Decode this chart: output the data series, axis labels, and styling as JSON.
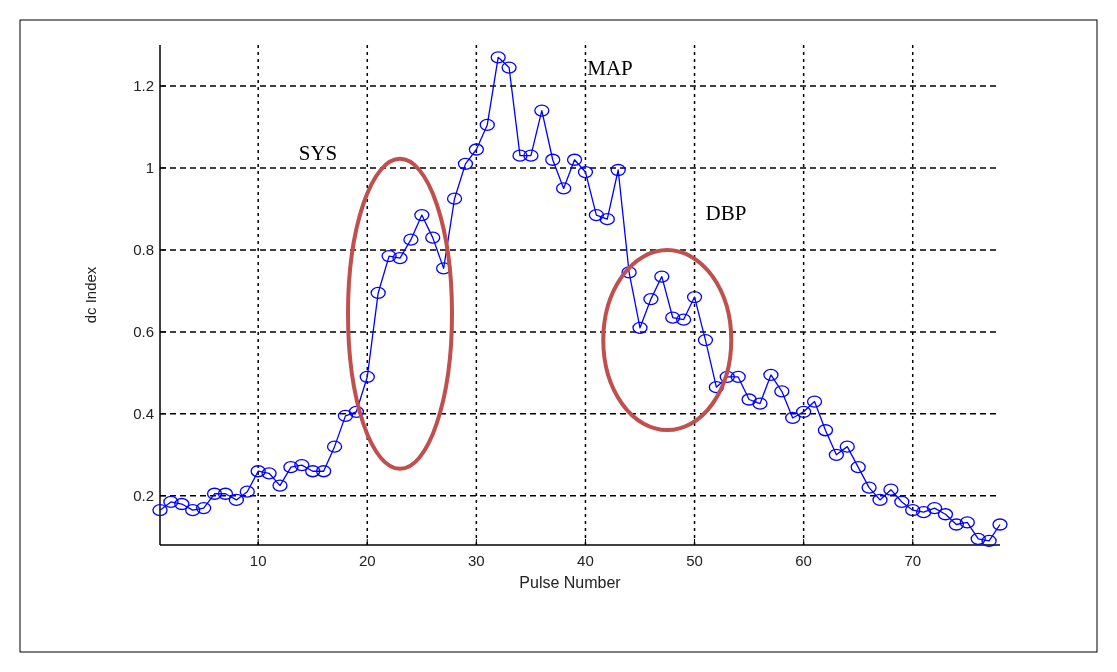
{
  "chart_data": {
    "type": "line",
    "xlabel": "Pulse Number",
    "ylabel": "dc Index",
    "x": [
      1,
      2,
      3,
      4,
      5,
      6,
      7,
      8,
      9,
      10,
      11,
      12,
      13,
      14,
      15,
      16,
      17,
      18,
      19,
      20,
      21,
      22,
      23,
      24,
      25,
      26,
      27,
      28,
      29,
      30,
      31,
      32,
      33,
      34,
      35,
      36,
      37,
      38,
      39,
      40,
      41,
      42,
      43,
      44,
      45,
      46,
      47,
      48,
      49,
      50,
      51,
      52,
      53,
      54,
      55,
      56,
      57,
      58,
      59,
      60,
      61,
      62,
      63,
      64,
      65,
      66,
      67,
      68,
      69,
      70,
      71,
      72,
      73,
      74,
      75,
      76,
      77,
      78
    ],
    "series": [
      {
        "color": "#0000ff",
        "values": [
          0.165,
          0.185,
          0.18,
          0.165,
          0.17,
          0.205,
          0.205,
          0.19,
          0.21,
          0.26,
          0.255,
          0.225,
          0.27,
          0.275,
          0.26,
          0.26,
          0.32,
          0.395,
          0.405,
          0.49,
          0.695,
          0.785,
          0.78,
          0.825,
          0.885,
          0.83,
          0.755,
          0.925,
          1.01,
          1.045,
          1.105,
          1.27,
          1.245,
          1.03,
          1.03,
          1.14,
          1.02,
          0.95,
          1.02,
          0.99,
          0.885,
          0.875,
          0.995,
          0.745,
          0.61,
          0.68,
          0.735,
          0.635,
          0.63,
          0.685,
          0.58,
          0.465,
          0.49,
          0.49,
          0.435,
          0.425,
          0.495,
          0.455,
          0.39,
          0.405,
          0.43,
          0.36,
          0.3,
          0.32,
          0.27,
          0.22,
          0.19,
          0.215,
          0.185,
          0.165,
          0.16,
          0.17,
          0.155,
          0.13,
          0.135,
          0.095,
          0.09,
          0.13
        ]
      }
    ],
    "xlim": [
      1,
      78
    ],
    "xticks": [
      10,
      20,
      30,
      40,
      50,
      60,
      70
    ],
    "ylim": [
      0.08,
      1.3
    ],
    "yticks": [
      0.2,
      0.4,
      0.6,
      0.8,
      1,
      1.2
    ],
    "grid": true,
    "marker": "circle",
    "line_style": "solid",
    "annotations": [
      "SYS",
      "MAP",
      "DBP"
    ]
  }
}
